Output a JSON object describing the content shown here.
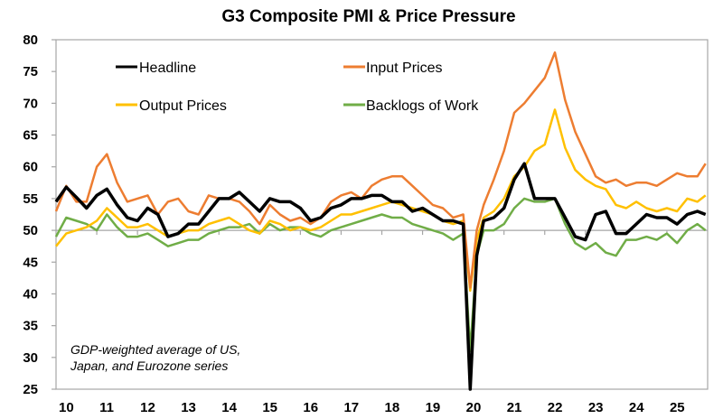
{
  "chart_data": {
    "type": "line",
    "title": "G3 Composite PMI & Price Pressure",
    "xlabel": "",
    "ylabel": "",
    "ylim": [
      25,
      80
    ],
    "yticks": [
      25,
      30,
      35,
      40,
      45,
      50,
      55,
      60,
      65,
      70,
      75,
      80
    ],
    "xlim": [
      2010.0,
      2026.0
    ],
    "xtick_labels": [
      "10",
      "11",
      "12",
      "13",
      "14",
      "15",
      "16",
      "17",
      "18",
      "19",
      "20",
      "21",
      "22",
      "23",
      "24",
      "25"
    ],
    "reference_line": 50,
    "grid": false,
    "legend_position": "top-left",
    "annotation": [
      "GDP-weighted average of US,",
      "Japan, and Eurozone series"
    ],
    "x": [
      2010.0,
      2010.25,
      2010.5,
      2010.75,
      2011.0,
      2011.25,
      2011.5,
      2011.75,
      2012.0,
      2012.25,
      2012.5,
      2012.75,
      2013.0,
      2013.25,
      2013.5,
      2013.75,
      2014.0,
      2014.25,
      2014.5,
      2014.75,
      2015.0,
      2015.25,
      2015.5,
      2015.75,
      2016.0,
      2016.25,
      2016.5,
      2016.75,
      2017.0,
      2017.25,
      2017.5,
      2017.75,
      2018.0,
      2018.25,
      2018.5,
      2018.75,
      2019.0,
      2019.25,
      2019.5,
      2019.75,
      2020.0,
      2020.17,
      2020.33,
      2020.5,
      2020.75,
      2021.0,
      2021.25,
      2021.5,
      2021.75,
      2022.0,
      2022.25,
      2022.5,
      2022.75,
      2023.0,
      2023.25,
      2023.5,
      2023.75,
      2024.0,
      2024.25,
      2024.5,
      2024.75,
      2025.0,
      2025.25,
      2025.5,
      2025.75,
      2025.95
    ],
    "series": [
      {
        "name": "Headline",
        "color": "#000000",
        "values": [
          54.5,
          56.8,
          55.2,
          53.5,
          55.5,
          56.5,
          54.0,
          52.0,
          51.5,
          53.5,
          52.5,
          49.0,
          49.5,
          51.0,
          51.0,
          53.0,
          55.0,
          55.0,
          56.0,
          54.5,
          53.0,
          55.0,
          54.5,
          54.5,
          53.5,
          51.5,
          52.0,
          53.5,
          54.0,
          55.0,
          55.0,
          55.5,
          55.5,
          54.5,
          54.5,
          53.0,
          53.5,
          52.5,
          51.5,
          51.5,
          51.0,
          25.0,
          46.0,
          51.5,
          52.0,
          53.5,
          58.0,
          60.5,
          55.0,
          55.0,
          55.0,
          52.0,
          49.0,
          48.5,
          52.5,
          53.0,
          49.5,
          49.5,
          51.0,
          52.5,
          52.0,
          52.0,
          51.0,
          52.5,
          53.0,
          52.5
        ]
      },
      {
        "name": "Input Prices",
        "color": "#ED7D31",
        "values": [
          53.0,
          57.0,
          54.5,
          54.5,
          60.0,
          62.0,
          57.5,
          54.5,
          55.0,
          55.5,
          52.5,
          54.5,
          55.0,
          53.0,
          52.5,
          55.5,
          55.0,
          55.0,
          54.5,
          53.0,
          51.0,
          54.0,
          52.5,
          51.5,
          52.0,
          51.0,
          52.0,
          54.5,
          55.5,
          56.0,
          55.0,
          57.0,
          58.0,
          58.5,
          58.5,
          57.0,
          55.5,
          54.0,
          53.5,
          52.0,
          52.5,
          41.0,
          50.0,
          54.0,
          58.0,
          62.5,
          68.5,
          70.0,
          72.0,
          74.0,
          78.0,
          70.5,
          65.5,
          62.0,
          58.5,
          57.5,
          58.0,
          57.0,
          57.5,
          57.5,
          57.0,
          58.0,
          59.0,
          58.5,
          58.5,
          60.5
        ]
      },
      {
        "name": "Output Prices",
        "color": "#FFC000",
        "values": [
          47.5,
          49.5,
          50.0,
          50.5,
          51.5,
          53.5,
          52.0,
          50.5,
          50.5,
          51.0,
          50.0,
          49.0,
          49.5,
          50.0,
          50.0,
          51.0,
          51.5,
          52.0,
          51.0,
          50.0,
          49.5,
          51.5,
          51.0,
          50.0,
          50.5,
          50.0,
          50.5,
          51.5,
          52.5,
          52.5,
          53.0,
          53.5,
          54.0,
          54.5,
          54.0,
          53.5,
          53.0,
          52.5,
          51.5,
          51.0,
          51.5,
          40.5,
          48.5,
          52.0,
          53.0,
          55.0,
          58.5,
          60.0,
          62.5,
          63.5,
          69.0,
          63.0,
          59.5,
          58.0,
          57.0,
          56.5,
          54.0,
          53.5,
          54.5,
          53.5,
          53.0,
          53.5,
          53.0,
          55.0,
          54.5,
          55.5
        ]
      },
      {
        "name": "Backlogs of Work",
        "color": "#70AD47",
        "values": [
          49.0,
          52.0,
          51.5,
          51.0,
          50.0,
          52.5,
          50.5,
          49.0,
          49.0,
          49.5,
          48.5,
          47.5,
          48.0,
          48.5,
          48.5,
          49.5,
          50.0,
          50.5,
          50.5,
          51.0,
          49.5,
          51.0,
          50.0,
          50.5,
          50.5,
          49.5,
          49.0,
          50.0,
          50.5,
          51.0,
          51.5,
          52.0,
          52.5,
          52.0,
          52.0,
          51.0,
          50.5,
          50.0,
          49.5,
          48.5,
          49.5,
          31.0,
          46.0,
          50.0,
          50.0,
          51.0,
          53.5,
          55.0,
          54.5,
          54.5,
          55.0,
          51.0,
          48.0,
          47.0,
          48.0,
          46.5,
          46.0,
          48.5,
          48.5,
          49.0,
          48.5,
          49.5,
          48.0,
          50.0,
          51.0,
          50.0
        ]
      }
    ]
  }
}
